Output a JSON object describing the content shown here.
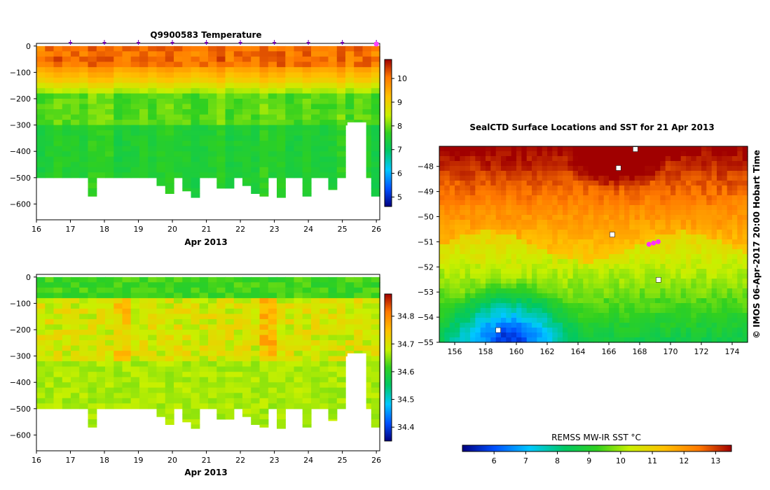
{
  "chart_data": [
    {
      "type": "heatmap",
      "title": "Q9900583  Temperature",
      "xlabel": "Apr 2013",
      "ylabel": "",
      "xlim": [
        16,
        26.1
      ],
      "ylim": [
        -660,
        10
      ],
      "x_ticks": [
        "16",
        "17",
        "18",
        "19",
        "20",
        "21",
        "22",
        "23",
        "24",
        "25",
        "26"
      ],
      "y_ticks": [
        "0",
        "−100",
        "−200",
        "−300",
        "−400",
        "−500",
        "−600"
      ],
      "colorbar": {
        "min": 4.6,
        "max": 10.8,
        "ticks": [
          "5",
          "6",
          "7",
          "8",
          "9",
          "10"
        ]
      },
      "profile_markers_x": [
        17,
        18,
        19,
        20,
        21,
        22,
        23,
        24,
        25,
        26
      ],
      "layers": [
        {
          "depth_top": 0,
          "depth_bottom": -80,
          "value": 10.0
        },
        {
          "depth_top": -80,
          "depth_bottom": -130,
          "value": 9.6
        },
        {
          "depth_top": -130,
          "depth_bottom": -180,
          "value": 8.6
        },
        {
          "depth_top": -180,
          "depth_bottom": -300,
          "value": 7.8
        },
        {
          "depth_top": -300,
          "depth_bottom": -500,
          "value": 7.4
        }
      ]
    },
    {
      "type": "heatmap",
      "title": "",
      "xlabel": "Apr 2013",
      "ylabel": "",
      "xlim": [
        16,
        26.1
      ],
      "ylim": [
        -660,
        10
      ],
      "x_ticks": [
        "16",
        "17",
        "18",
        "19",
        "20",
        "21",
        "22",
        "23",
        "24",
        "25",
        "26"
      ],
      "y_ticks": [
        "0",
        "−100",
        "−200",
        "−300",
        "−400",
        "−500",
        "−600"
      ],
      "colorbar": {
        "min": 34.35,
        "max": 34.88,
        "ticks": [
          "34.4",
          "34.5",
          "34.6",
          "34.7",
          "34.8"
        ]
      },
      "layers": [
        {
          "depth_top": 0,
          "depth_bottom": -100,
          "value": 34.63
        },
        {
          "depth_top": -100,
          "depth_bottom": -300,
          "value": 34.68
        },
        {
          "depth_top": -300,
          "depth_bottom": -500,
          "value": 34.66
        }
      ]
    },
    {
      "type": "heatmap",
      "title": "SealCTD Surface Locations and SST for 21 Apr 2013",
      "xlabel": "",
      "ylabel": "",
      "xlim": [
        155,
        175
      ],
      "ylim": [
        -55,
        -47.2
      ],
      "x_ticks": [
        "156",
        "158",
        "160",
        "162",
        "164",
        "166",
        "168",
        "170",
        "172",
        "174"
      ],
      "y_ticks": [
        "−48",
        "−49",
        "−50",
        "−51",
        "−52",
        "−53",
        "−54",
        "−55"
      ],
      "colorbar": {
        "label": "REMSS MW-IR SST °C",
        "min": 5,
        "max": 13.5,
        "ticks": [
          "6",
          "7",
          "8",
          "9",
          "10",
          "11",
          "12",
          "13"
        ]
      },
      "credit": "© IMOS 06-Apr-2017 20:00 Hobart Time",
      "seal_locations": [
        {
          "lon": 168.6,
          "lat": -51.1
        },
        {
          "lon": 168.9,
          "lat": -51.05
        },
        {
          "lon": 169.2,
          "lat": -51.0
        }
      ]
    }
  ]
}
